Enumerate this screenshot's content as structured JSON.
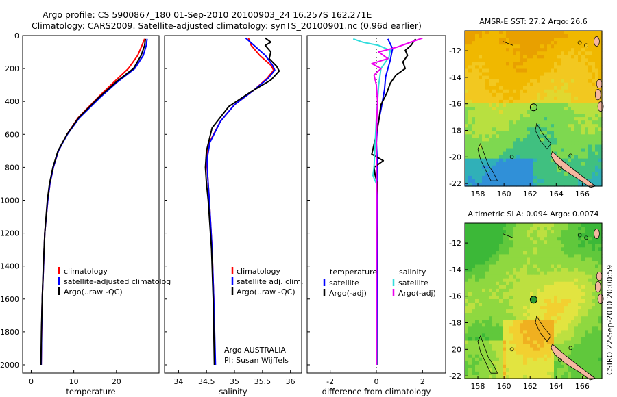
{
  "header": {
    "line1": "Argo profile: CS 5900867_180 01-Sep-2010 20100903_24 16.257S 162.271E",
    "line2": "Climatology: CARS2009. Satellite-adjusted climatology: synTS_20100901.nc (0.96d earlier)"
  },
  "colors": {
    "clim": "#ff0000",
    "sat": "#0000ff",
    "argo": "#000000",
    "sal_sat": "#33dddd",
    "sal_argo": "#ee00ee",
    "coast": "#f5b7a0"
  },
  "credit": "CSIRO 22-Sep-2010 20:00:59",
  "chart_data": [
    {
      "type": "line",
      "id": "temperature",
      "xlabel": "temperature",
      "ylabel": "",
      "xlim": [
        -2,
        30
      ],
      "ylim": [
        2050,
        0
      ],
      "xticks": [
        0,
        10,
        20
      ],
      "yticks": [
        0,
        200,
        400,
        600,
        800,
        1000,
        1200,
        1400,
        1600,
        1800,
        2000
      ],
      "legend": [
        "climatology",
        "satellite-adjusted climatolog",
        "Argo(..raw -QC)"
      ],
      "series": [
        {
          "name": "climatology",
          "color": "#ff0000",
          "points": [
            [
              26.6,
              20
            ],
            [
              26.0,
              60
            ],
            [
              25.0,
              120
            ],
            [
              22.8,
              200
            ],
            [
              19.5,
              280
            ],
            [
              15.5,
              380
            ],
            [
              11.0,
              500
            ],
            [
              8.4,
              600
            ],
            [
              6.4,
              700
            ],
            [
              5.2,
              800
            ],
            [
              4.4,
              900
            ],
            [
              3.9,
              1000
            ],
            [
              3.2,
              1200
            ],
            [
              2.9,
              1400
            ],
            [
              2.6,
              1600
            ],
            [
              2.45,
              1800
            ],
            [
              2.35,
              2000
            ]
          ]
        },
        {
          "name": "satellite",
          "color": "#0000ff",
          "points": [
            [
              27.2,
              20
            ],
            [
              27.0,
              60
            ],
            [
              26.3,
              120
            ],
            [
              24.3,
              200
            ],
            [
              20.3,
              280
            ],
            [
              16.0,
              380
            ],
            [
              11.3,
              500
            ],
            [
              8.5,
              600
            ],
            [
              6.4,
              700
            ],
            [
              5.2,
              800
            ],
            [
              4.4,
              900
            ],
            [
              3.9,
              1000
            ],
            [
              3.2,
              1200
            ],
            [
              2.9,
              1400
            ],
            [
              2.6,
              1600
            ],
            [
              2.45,
              1800
            ],
            [
              2.35,
              2000
            ]
          ]
        },
        {
          "name": "argo",
          "color": "#000000",
          "points": [
            [
              26.8,
              20
            ],
            [
              26.6,
              60
            ],
            [
              25.8,
              120
            ],
            [
              24.0,
              200
            ],
            [
              20.0,
              280
            ],
            [
              15.7,
              380
            ],
            [
              11.1,
              500
            ],
            [
              8.4,
              600
            ],
            [
              6.3,
              700
            ],
            [
              5.1,
              800
            ],
            [
              4.3,
              900
            ],
            [
              3.8,
              1000
            ],
            [
              3.2,
              1200
            ],
            [
              2.85,
              1400
            ],
            [
              2.6,
              1600
            ],
            [
              2.4,
              1800
            ],
            [
              2.3,
              2000
            ]
          ]
        }
      ]
    },
    {
      "type": "line",
      "id": "salinity",
      "xlabel": "salinity",
      "xlim": [
        33.75,
        36.2
      ],
      "ylim": [
        2050,
        0
      ],
      "xticks": [
        34,
        34.5,
        35,
        35.5,
        36
      ],
      "legend": [
        "climatology",
        "satellite adj. clim.",
        "Argo(..raw -QC)"
      ],
      "annotation": [
        "Argo AUSTRALIA",
        "PI: Susan Wijffels"
      ],
      "series": [
        {
          "name": "climatology",
          "color": "#ff0000",
          "points": [
            [
              35.25,
              15
            ],
            [
              35.3,
              60
            ],
            [
              35.45,
              120
            ],
            [
              35.65,
              180
            ],
            [
              35.7,
              210
            ],
            [
              35.58,
              260
            ],
            [
              35.35,
              330
            ],
            [
              35.0,
              420
            ],
            [
              34.75,
              520
            ],
            [
              34.55,
              650
            ],
            [
              34.5,
              750
            ],
            [
              34.52,
              850
            ],
            [
              34.55,
              1000
            ],
            [
              34.6,
              1300
            ],
            [
              34.63,
              1600
            ],
            [
              34.65,
              2000
            ]
          ]
        },
        {
          "name": "satellite",
          "color": "#0000ff",
          "points": [
            [
              35.2,
              15
            ],
            [
              35.35,
              60
            ],
            [
              35.55,
              120
            ],
            [
              35.68,
              180
            ],
            [
              35.72,
              210
            ],
            [
              35.6,
              260
            ],
            [
              35.35,
              330
            ],
            [
              35.0,
              420
            ],
            [
              34.75,
              520
            ],
            [
              34.56,
              650
            ],
            [
              34.51,
              750
            ],
            [
              34.52,
              850
            ],
            [
              34.55,
              1000
            ],
            [
              34.6,
              1300
            ],
            [
              34.63,
              1600
            ],
            [
              34.66,
              2000
            ]
          ]
        },
        {
          "name": "argo",
          "color": "#000000",
          "points": [
            [
              35.55,
              15
            ],
            [
              35.65,
              40
            ],
            [
              35.55,
              60
            ],
            [
              35.65,
              100
            ],
            [
              35.62,
              140
            ],
            [
              35.75,
              185
            ],
            [
              35.8,
              215
            ],
            [
              35.65,
              270
            ],
            [
              35.3,
              340
            ],
            [
              34.9,
              430
            ],
            [
              34.6,
              560
            ],
            [
              34.5,
              700
            ],
            [
              34.48,
              800
            ],
            [
              34.5,
              900
            ],
            [
              34.53,
              1000
            ],
            [
              34.59,
              1300
            ],
            [
              34.62,
              1600
            ],
            [
              34.64,
              2000
            ]
          ]
        }
      ]
    },
    {
      "type": "line",
      "id": "difference",
      "xlabel": "difference from climatology",
      "xlim": [
        -3,
        3
      ],
      "ylim": [
        2050,
        0
      ],
      "xticks": [
        -2,
        0,
        2
      ],
      "legend": {
        "temperature": [
          "satellite",
          "Argo(-adj)"
        ],
        "salinity": [
          "satellite",
          "Argo(-adj)"
        ]
      },
      "legend_heads": [
        "temperature",
        "salinity"
      ],
      "series": [
        {
          "name": "temp satellite",
          "color": "#0000ff",
          "points": [
            [
              0.5,
              20
            ],
            [
              0.7,
              80
            ],
            [
              0.6,
              150
            ],
            [
              0.4,
              250
            ],
            [
              0.35,
              330
            ],
            [
              0.2,
              450
            ],
            [
              0.05,
              550
            ],
            [
              0.0,
              650
            ],
            [
              0.05,
              800
            ],
            [
              0.05,
              1000
            ],
            [
              0.03,
              1500
            ],
            [
              0.02,
              2000
            ]
          ]
        },
        {
          "name": "temp Argo(-adj)",
          "color": "#000000",
          "points": [
            [
              1.7,
              20
            ],
            [
              1.5,
              60
            ],
            [
              1.25,
              90
            ],
            [
              1.35,
              120
            ],
            [
              1.15,
              160
            ],
            [
              1.25,
              200
            ],
            [
              0.85,
              240
            ],
            [
              0.6,
              290
            ],
            [
              0.45,
              350
            ],
            [
              0.2,
              420
            ],
            [
              0.1,
              520
            ],
            [
              0.0,
              600
            ],
            [
              -0.1,
              660
            ],
            [
              -0.2,
              720
            ],
            [
              0.3,
              760
            ],
            [
              -0.1,
              800
            ],
            [
              -0.05,
              850
            ],
            [
              0.05,
              900
            ],
            [
              0.0,
              1000
            ],
            [
              0.02,
              1200
            ],
            [
              0.0,
              1500
            ],
            [
              0.01,
              2000
            ]
          ]
        },
        {
          "name": "sal satellite",
          "color": "#33dddd",
          "points": [
            [
              -1.0,
              20
            ],
            [
              -0.6,
              40
            ],
            [
              0.1,
              60
            ],
            [
              0.6,
              90
            ],
            [
              0.55,
              130
            ],
            [
              0.2,
              200
            ],
            [
              0.1,
              300
            ],
            [
              0.05,
              400
            ],
            [
              0.0,
              500
            ],
            [
              -0.05,
              650
            ],
            [
              -0.1,
              800
            ],
            [
              -0.15,
              850
            ],
            [
              0.0,
              900
            ],
            [
              0.0,
              1200
            ],
            [
              0.0,
              1600
            ],
            [
              0.0,
              2000
            ]
          ]
        },
        {
          "name": "sal Argo(-adj)",
          "color": "#ee00ee",
          "points": [
            [
              2.0,
              15
            ],
            [
              1.3,
              50
            ],
            [
              0.9,
              70
            ],
            [
              0.1,
              100
            ],
            [
              0.5,
              140
            ],
            [
              -0.2,
              170
            ],
            [
              0.2,
              200
            ],
            [
              -0.1,
              240
            ],
            [
              0.0,
              300
            ],
            [
              0.05,
              400
            ],
            [
              0.02,
              500
            ],
            [
              0.0,
              700
            ],
            [
              0.02,
              1000
            ],
            [
              0.01,
              1500
            ],
            [
              0.0,
              2000
            ]
          ]
        }
      ]
    },
    {
      "type": "heatmap",
      "id": "sst_map",
      "title": "AMSR-E SST: 27.2  Argo: 26.6",
      "xlim": [
        157,
        167.5
      ],
      "ylim": [
        -22.2,
        -10.5
      ],
      "xticks": [
        158,
        160,
        162,
        164,
        166
      ],
      "yticks": [
        -12,
        -14,
        -16,
        -18,
        -20,
        -22
      ],
      "marker": {
        "lon": 162.271,
        "lat": -16.257
      },
      "palette": [
        "#e8a000",
        "#f0b800",
        "#f2c820",
        "#e0d830",
        "#b8e040",
        "#7ed850",
        "#40c080",
        "#30b0b8",
        "#3090d8"
      ]
    },
    {
      "type": "heatmap",
      "id": "sla_map",
      "title": "Altimetric SLA: 0.094  Argo: 0.0074",
      "xlim": [
        157,
        167.5
      ],
      "ylim": [
        -22.2,
        -10.5
      ],
      "xticks": [
        158,
        160,
        162,
        164,
        166
      ],
      "yticks": [
        -12,
        -14,
        -16,
        -18,
        -20,
        -22
      ],
      "marker": {
        "lon": 162.271,
        "lat": -16.257
      },
      "palette": [
        "#f0b020",
        "#f2d030",
        "#e2e440",
        "#bde040",
        "#8fd840",
        "#60c83c",
        "#3cb838"
      ]
    }
  ]
}
